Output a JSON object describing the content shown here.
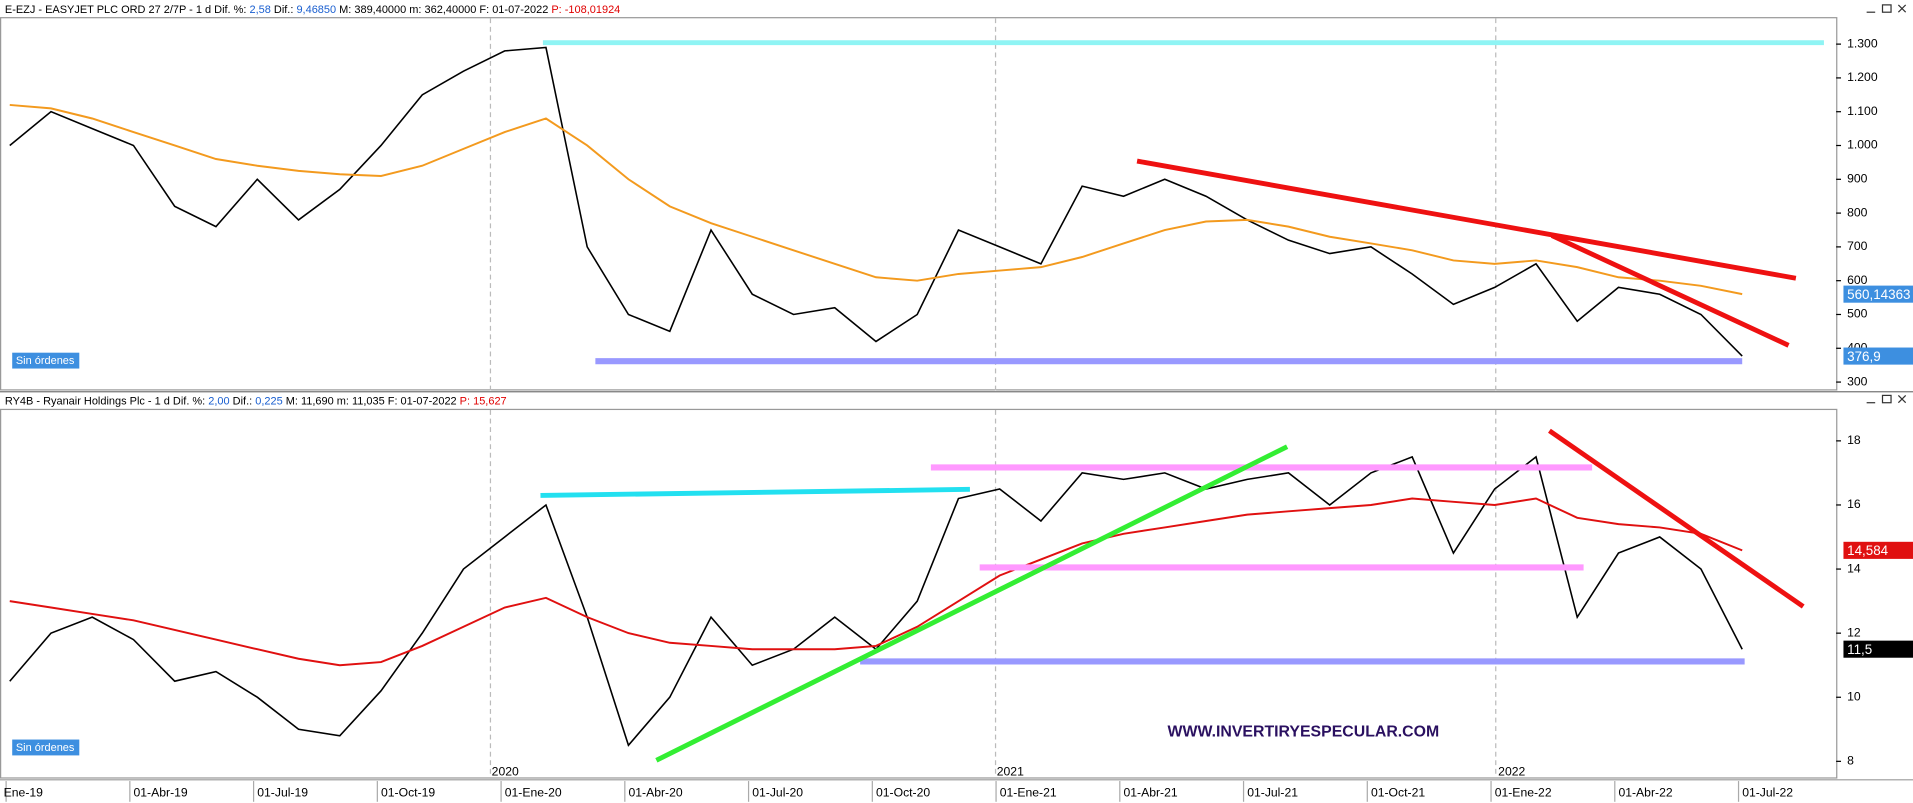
{
  "chart_data": [
    {
      "type": "line",
      "header": [
        "E-EZJ - EASYJET PLC ORD 27 2/7P -  1 d",
        " Dif. %: ",
        "2,58",
        "  Dif.: ",
        "9,46850",
        "  M: ",
        "389,40000",
        "  m: ",
        "362,40000",
        "  F: ",
        "01-07-2022",
        "  P: ",
        "-108,01924"
      ],
      "header_colors": [
        "#000000",
        "#000000",
        "#1a5fd0",
        "#000000",
        "#1a5fd0",
        "#000000",
        "#000000",
        "#000000",
        "#000000",
        "#000000",
        "#000000",
        "#e00000",
        "#e00000"
      ],
      "order_button": "Sin órdenes",
      "ylim": [
        275,
        1380
      ],
      "yticks": [
        300,
        400,
        500,
        600,
        700,
        800,
        900,
        {
          "value": 1000,
          "label": "1.000"
        },
        {
          "value": 1100,
          "label": "1.100"
        },
        {
          "value": 1200,
          "label": "1.200"
        },
        {
          "value": 1300,
          "label": "1.300"
        }
      ],
      "series": [
        {
          "name": "E-EZJ",
          "color": "#000000",
          "label_color": "#3d8fe0",
          "values": [
            1000,
            1100,
            1050,
            1000,
            820,
            760,
            900,
            780,
            870,
            1000,
            1150,
            1220,
            1280,
            1290,
            700,
            500,
            450,
            750,
            560,
            500,
            520,
            420,
            500,
            750,
            700,
            650,
            880,
            850,
            900,
            850,
            780,
            720,
            680,
            700,
            620,
            530,
            580,
            650,
            480,
            580,
            560,
            500,
            376.9
          ],
          "value_labels": [
            null,
            null,
            null,
            null,
            null,
            null,
            null,
            null,
            null,
            null,
            null,
            null,
            null,
            null,
            null,
            null,
            null,
            null,
            null,
            null,
            null,
            null,
            null,
            null,
            null,
            null,
            null,
            null,
            null,
            null,
            null,
            null,
            null,
            null,
            null,
            null,
            null,
            null,
            null,
            null,
            null,
            null,
            "376,9"
          ]
        },
        {
          "name": "MA",
          "color": "#f39a1e",
          "label_color": "#3d8fe0",
          "values": [
            1120,
            1110,
            1080,
            1040,
            1000,
            960,
            940,
            925,
            915,
            910,
            940,
            990,
            1040,
            1080,
            1000,
            900,
            820,
            770,
            730,
            690,
            650,
            610,
            600,
            620,
            630,
            640,
            670,
            710,
            750,
            775,
            780,
            760,
            730,
            710,
            690,
            660,
            650,
            660,
            640,
            610,
            600,
            585,
            560.14363
          ],
          "value_labels": [
            null,
            null,
            null,
            null,
            null,
            null,
            null,
            null,
            null,
            null,
            null,
            null,
            null,
            null,
            null,
            null,
            null,
            null,
            null,
            null,
            null,
            null,
            null,
            null,
            null,
            null,
            null,
            null,
            null,
            null,
            null,
            null,
            null,
            null,
            null,
            null,
            null,
            null,
            null,
            null,
            null,
            null,
            "560,14363"
          ]
        }
      ]
    },
    {
      "type": "line",
      "header": [
        "RY4B - Ryanair Holdings Plc -  1 d",
        " Dif. %: ",
        "2,00",
        "  Dif.: ",
        "0,225",
        "  M: ",
        "11,690",
        "  m: ",
        "11,035",
        "  F: ",
        "01-07-2022",
        "  P: ",
        "15,627"
      ],
      "header_colors": [
        "#000000",
        "#000000",
        "#1a5fd0",
        "#000000",
        "#1a5fd0",
        "#000000",
        "#000000",
        "#000000",
        "#000000",
        "#000000",
        "#000000",
        "#e00000",
        "#e00000"
      ],
      "order_button": "Sin órdenes",
      "watermark": "WWW.INVERTIRYESPECULAR.COM",
      "categories": [
        "Ene-19",
        null,
        null,
        "01-Abr-19",
        null,
        null,
        "01-Jul-19",
        null,
        null,
        "01-Oct-19",
        null,
        null,
        "01-Ene-20",
        null,
        null,
        "01-Abr-20",
        null,
        null,
        "01-Jul-20",
        null,
        null,
        "01-Oct-20",
        null,
        null,
        "01-Ene-21",
        null,
        null,
        "01-Abr-21",
        null,
        null,
        "01-Jul-21",
        null,
        null,
        "01-Oct-21",
        null,
        null,
        "01-Ene-22",
        null,
        null,
        "01-Abr-22",
        null,
        null,
        "01-Jul-22"
      ],
      "year_labels": [
        "2020",
        "2021",
        "2022"
      ],
      "ylim": [
        7.5,
        19
      ],
      "yticks": [
        8,
        10,
        12,
        14,
        16,
        18
      ],
      "series": [
        {
          "name": "RY4B",
          "color": "#000000",
          "label_color": "#000000",
          "values": [
            10.5,
            12.0,
            12.5,
            11.8,
            10.5,
            10.8,
            10.0,
            9.0,
            8.8,
            10.2,
            12.0,
            14.0,
            15.0,
            16.0,
            12.5,
            8.5,
            10.0,
            12.5,
            11.0,
            11.5,
            12.5,
            11.5,
            13.0,
            16.2,
            16.5,
            15.5,
            17.0,
            16.8,
            17.0,
            16.5,
            16.8,
            17.0,
            16.0,
            17.0,
            17.5,
            14.5,
            16.5,
            17.5,
            12.5,
            14.5,
            15.0,
            14.0,
            11.5
          ],
          "value_labels": [
            null,
            null,
            null,
            null,
            null,
            null,
            null,
            null,
            null,
            null,
            null,
            null,
            null,
            null,
            null,
            null,
            null,
            null,
            null,
            null,
            null,
            null,
            null,
            null,
            null,
            null,
            null,
            null,
            null,
            null,
            null,
            null,
            null,
            null,
            null,
            null,
            null,
            null,
            null,
            null,
            null,
            null,
            "11,5"
          ]
        },
        {
          "name": "MA",
          "color": "#e01010",
          "label_color": "#e01010",
          "values": [
            13.0,
            12.8,
            12.6,
            12.4,
            12.1,
            11.8,
            11.5,
            11.2,
            11.0,
            11.1,
            11.6,
            12.2,
            12.8,
            13.1,
            12.5,
            12.0,
            11.7,
            11.6,
            11.5,
            11.5,
            11.5,
            11.6,
            12.2,
            13.0,
            13.8,
            14.3,
            14.8,
            15.1,
            15.3,
            15.5,
            15.7,
            15.8,
            15.9,
            16.0,
            16.2,
            16.1,
            16.0,
            16.2,
            15.6,
            15.4,
            15.3,
            15.1,
            14.584
          ],
          "value_labels": [
            null,
            null,
            null,
            null,
            null,
            null,
            null,
            null,
            null,
            null,
            null,
            null,
            null,
            null,
            null,
            null,
            null,
            null,
            null,
            null,
            null,
            null,
            null,
            null,
            null,
            null,
            null,
            null,
            null,
            null,
            null,
            null,
            null,
            null,
            null,
            null,
            null,
            null,
            null,
            null,
            null,
            null,
            "14,584"
          ]
        }
      ]
    }
  ]
}
